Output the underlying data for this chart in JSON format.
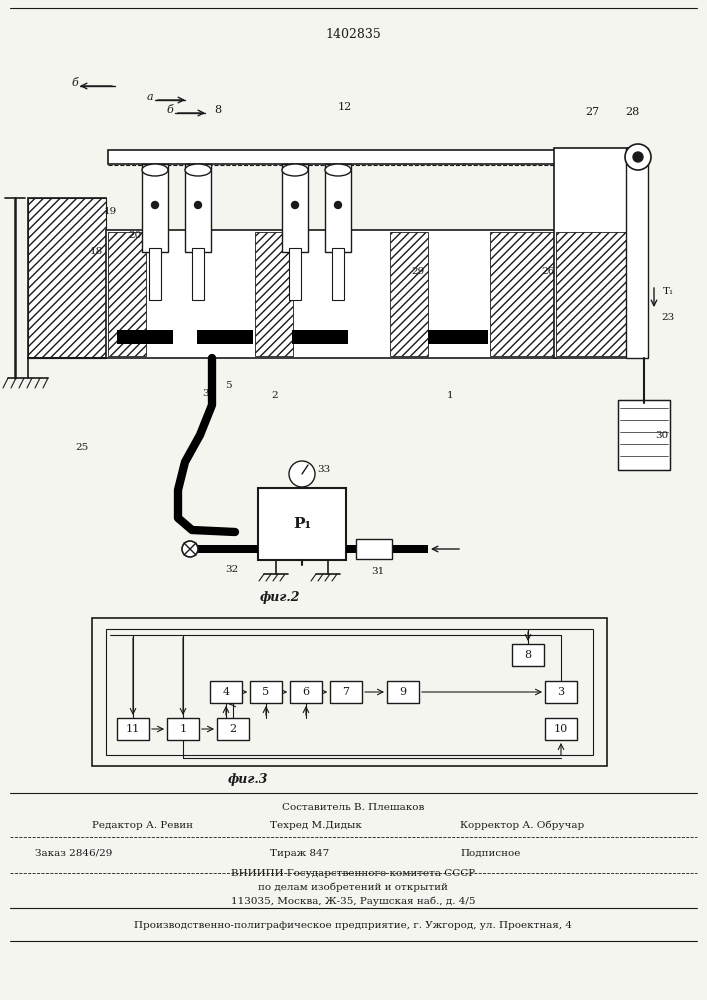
{
  "patent_number": "1402835",
  "fig2_label": "фиг.2",
  "fig3_label": "фиг.3",
  "footer_line1": "Составитель В. Плешаков",
  "footer_line2_left": "Редактор А. Ревин",
  "footer_line2_mid": "Техред М.Дидык",
  "footer_line2_right": "Корректор А. Обручар",
  "footer_line3_left": "Заказ 2846/29",
  "footer_line3_mid": "Тираж 847",
  "footer_line3_right": "Подписное",
  "footer_line4": "ВНИИПИ Государственного комитета СССР",
  "footer_line5": "по делам изобретений и открытий",
  "footer_line6": "113035, Москва, Ж-35, Раушская наб., д. 4/5",
  "footer_line7": "Производственно-полиграфическое предприятие, г. Ужгород, ул. Проектная, 4",
  "bg_color": "#f5f5f0",
  "line_color": "#1a1a1a"
}
